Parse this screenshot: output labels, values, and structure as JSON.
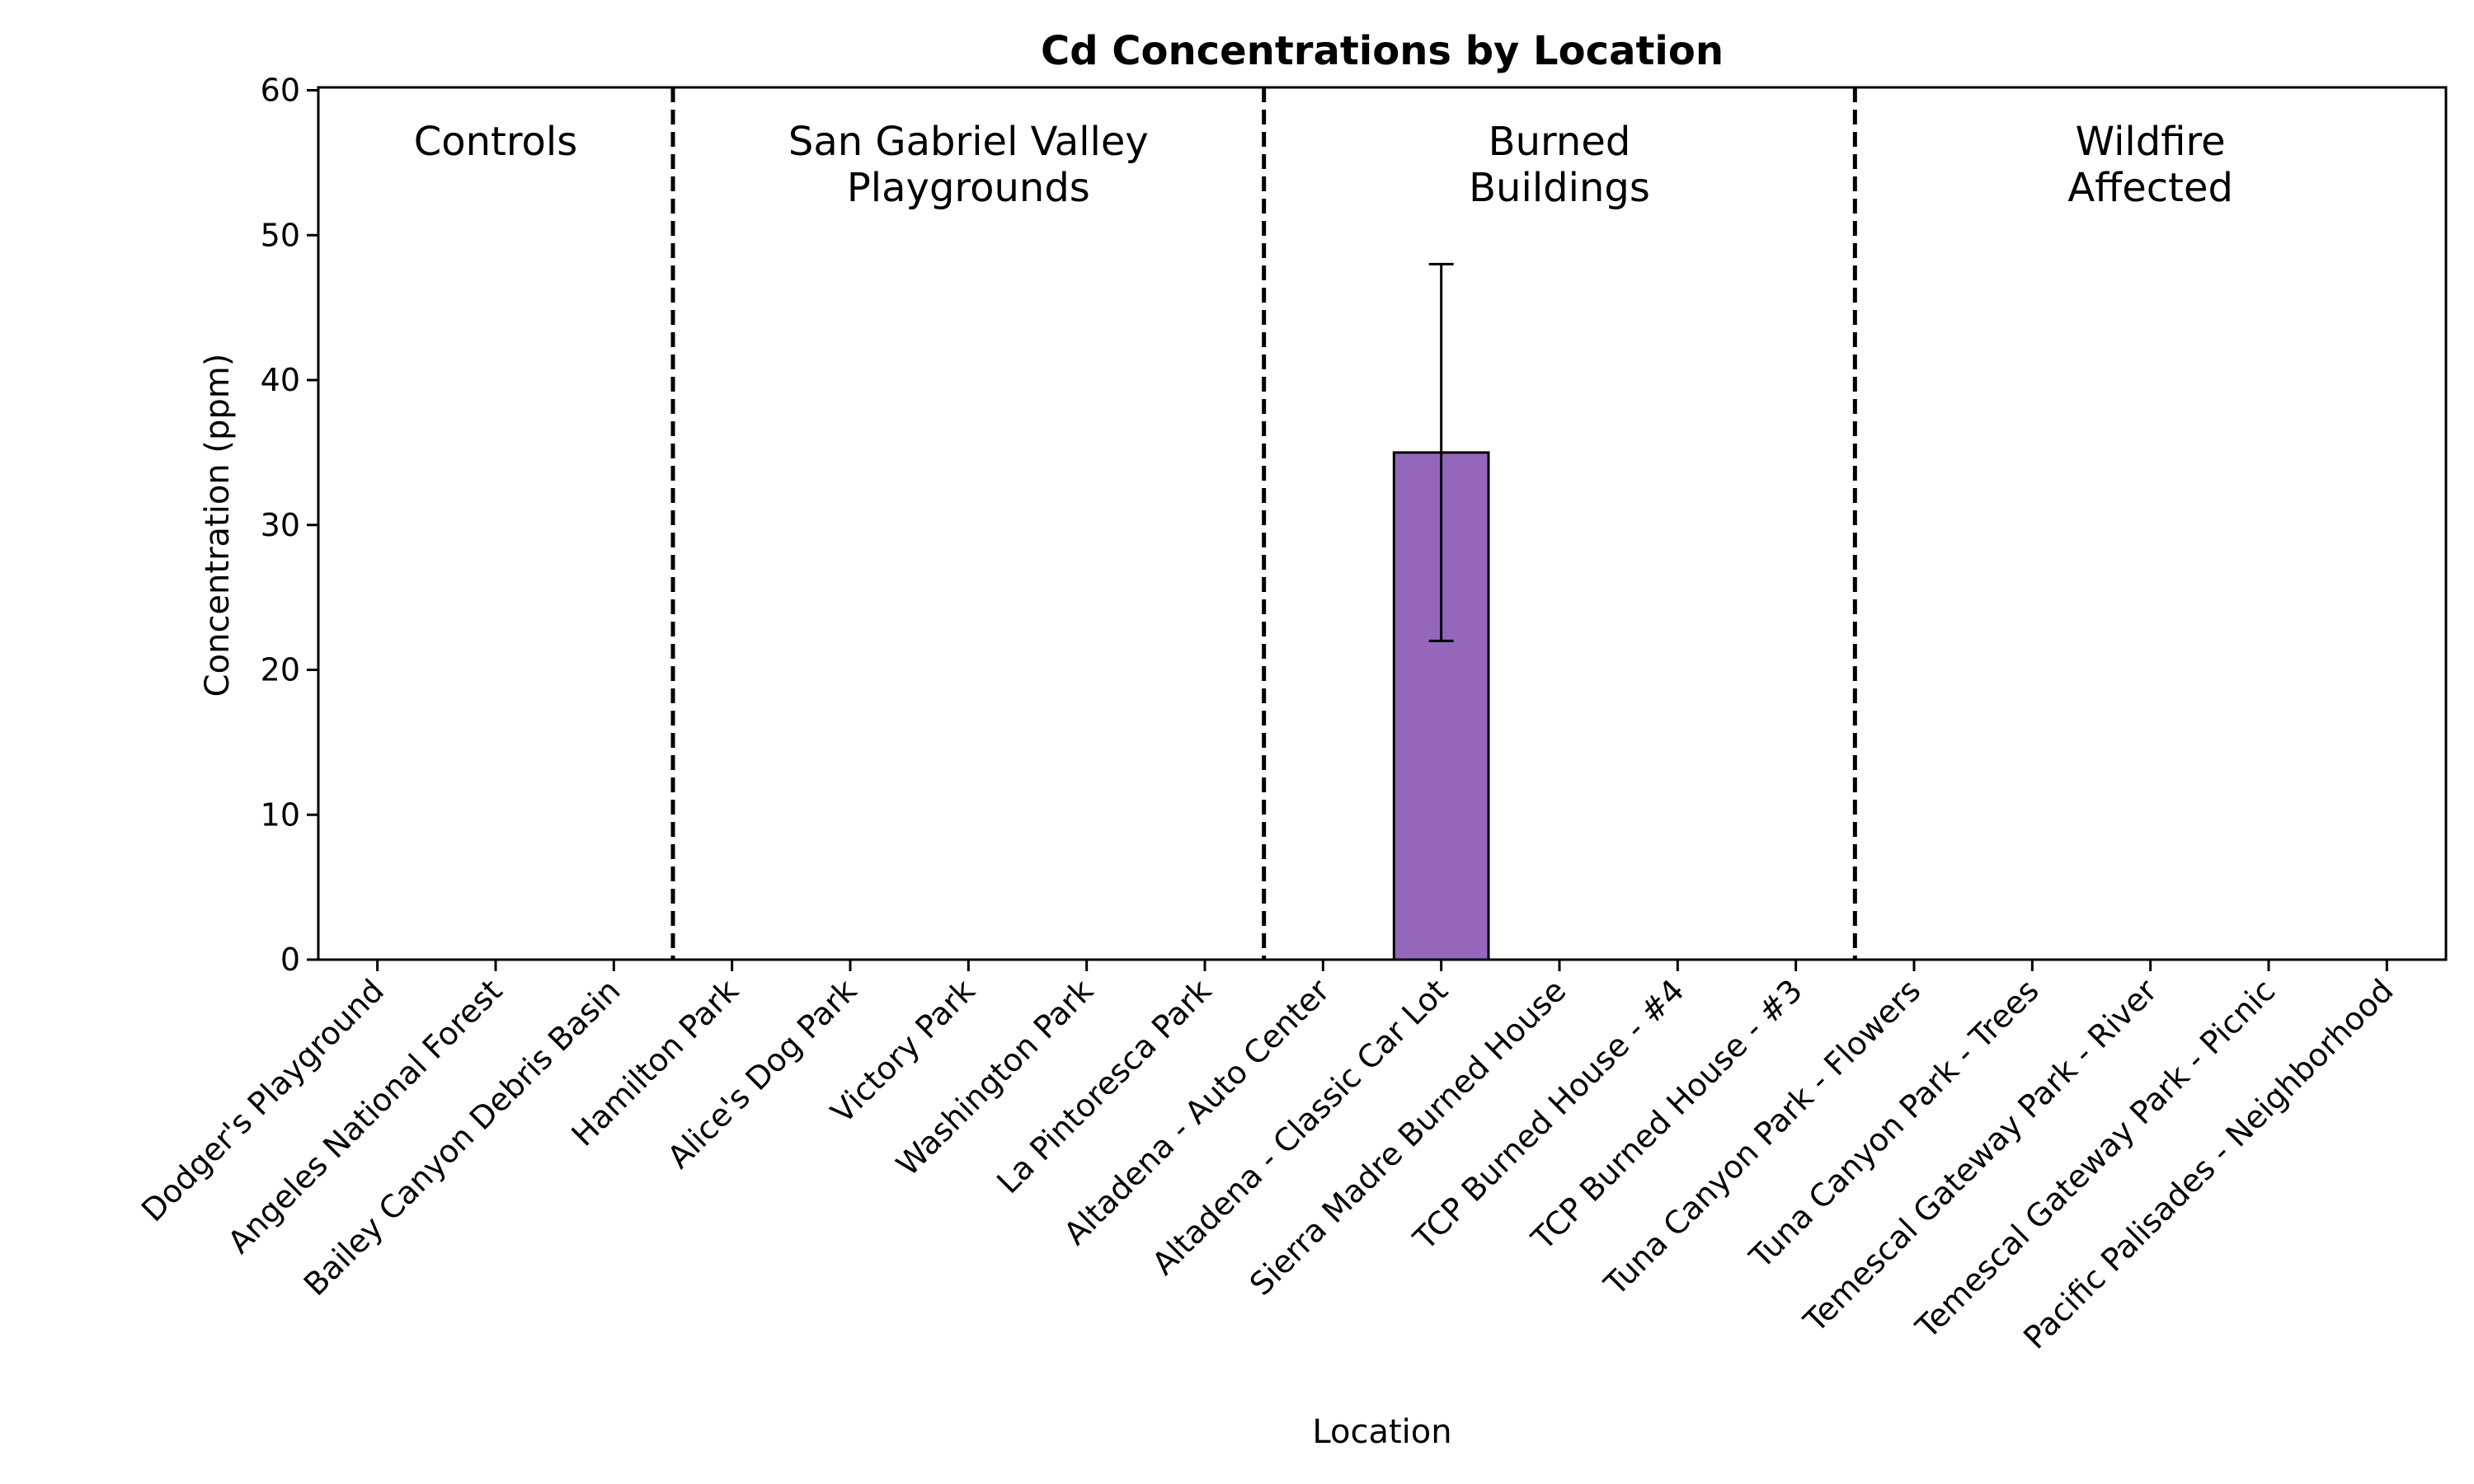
{
  "chart_data": {
    "type": "bar",
    "title": "Cd Concentrations by Location",
    "xlabel": "Location",
    "ylabel": "Concentration (ppm)",
    "ylim": [
      0,
      60.2
    ],
    "yticks": [
      0,
      10,
      20,
      30,
      40,
      50,
      60
    ],
    "grid": false,
    "bar_color": "#9467bd",
    "categories": [
      "Dodger's Playground",
      "Angeles National Forest",
      "Bailey Canyon Debris Basin",
      "Hamilton Park",
      "Alice's Dog Park",
      "Victory Park",
      "Washington Park",
      "La Pintoresca Park",
      "Altadena - Auto Center",
      "Altadena - Classic Car Lot",
      "Sierra Madre Burned House",
      "TCP Burned House - #4",
      "TCP Burned House - #3",
      "Tuna Canyon Park - Flowers",
      "Tuna Canyon Park - Trees",
      "Temescal Gateway Park - River",
      "Temescal Gateway Park - Picnic",
      "Pacific Palisades - Neighborhood"
    ],
    "values": [
      null,
      null,
      null,
      null,
      null,
      null,
      null,
      null,
      null,
      35,
      null,
      null,
      null,
      null,
      null,
      null,
      null,
      null
    ],
    "error_low": [
      null,
      null,
      null,
      null,
      null,
      null,
      null,
      null,
      null,
      22,
      null,
      null,
      null,
      null,
      null,
      null,
      null,
      null
    ],
    "error_high": [
      null,
      null,
      null,
      null,
      null,
      null,
      null,
      null,
      null,
      48,
      null,
      null,
      null,
      null,
      null,
      null,
      null,
      null
    ],
    "groups": [
      {
        "lines": [
          "Controls"
        ],
        "start": 0,
        "end": 2
      },
      {
        "lines": [
          "San Gabriel Valley",
          "Playgrounds"
        ],
        "start": 3,
        "end": 7
      },
      {
        "lines": [
          "Burned",
          "Buildings"
        ],
        "start": 8,
        "end": 12
      },
      {
        "lines": [
          "Wildfire",
          "Affected"
        ],
        "start": 13,
        "end": 17
      }
    ]
  }
}
